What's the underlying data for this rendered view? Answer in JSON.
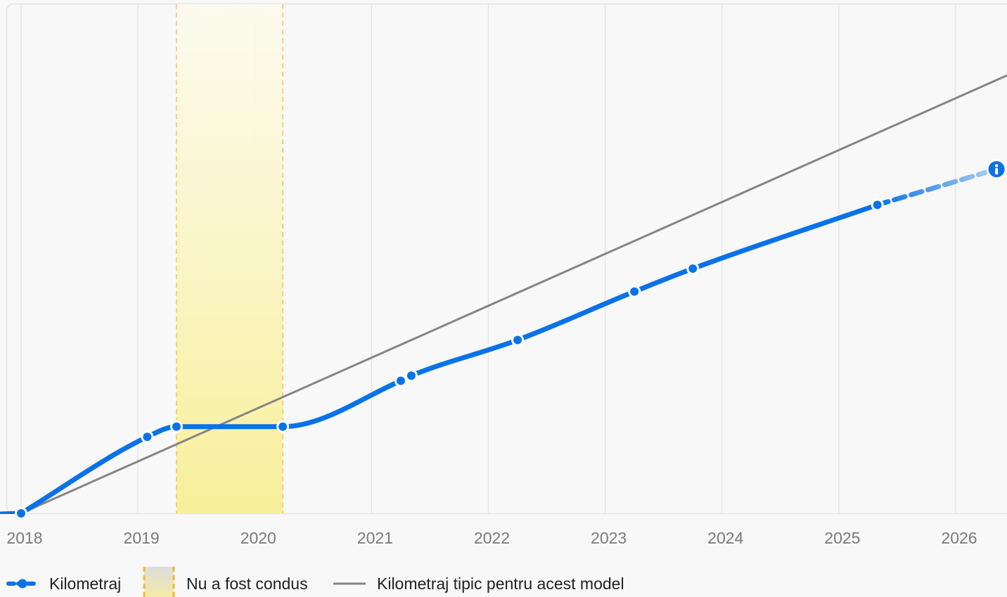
{
  "chart_data": {
    "type": "line",
    "title": "",
    "xlabel": "",
    "ylabel": "",
    "x_ticks": [
      "2018",
      "2019",
      "2020",
      "2021",
      "2022",
      "2023",
      "2024",
      "2025",
      "2026"
    ],
    "highlighted_tick": "2025",
    "xlim": [
      2017.9,
      2026.45
    ],
    "ylim": [
      0,
      100
    ],
    "grid": "vertical",
    "y_axis_labels": "none",
    "legend_position": "bottom-left",
    "series": [
      {
        "name": "Kilometraj",
        "style": "solid-then-dashed",
        "color": "#0a72e8",
        "points": [
          {
            "x": 2018.0,
            "y": 0
          },
          {
            "x": 2019.08,
            "y": 15
          },
          {
            "x": 2019.33,
            "y": 17
          },
          {
            "x": 2020.24,
            "y": 17
          },
          {
            "x": 2021.25,
            "y": 26
          },
          {
            "x": 2021.34,
            "y": 27
          },
          {
            "x": 2022.25,
            "y": 34
          },
          {
            "x": 2023.25,
            "y": 43.5
          },
          {
            "x": 2023.75,
            "y": 48
          },
          {
            "x": 2025.33,
            "y": 60.5
          }
        ],
        "projection": [
          {
            "x": 2025.33,
            "y": 60.5
          },
          {
            "x": 2026.35,
            "y": 67.5
          }
        ],
        "info_marker": {
          "x": 2026.35,
          "y": 67.5,
          "icon": "info-icon"
        }
      },
      {
        "name": "Kilometraj tipic pentru acest model",
        "style": "solid",
        "color": "#858585",
        "points": [
          {
            "x": 2018.0,
            "y": 0
          },
          {
            "x": 2026.45,
            "y": 86
          }
        ]
      }
    ],
    "bands": [
      {
        "name": "Nu a fost condus",
        "x_start": 2019.33,
        "x_end": 2020.24,
        "color": "#f8ef9a"
      }
    ],
    "legend": [
      {
        "label": "Kilometraj",
        "type": "dashed-line-dot",
        "color": "#0a72e8"
      },
      {
        "label": "Nu a fost condus",
        "type": "band",
        "color": "#f5e27a"
      },
      {
        "label": "Kilometraj tipic pentru acest model",
        "type": "line",
        "color": "#858585"
      }
    ],
    "colors": {
      "tick": "#7a7a7a",
      "tick_highlight": "#0a72e8",
      "grid": "#e6e6e6",
      "band_border": "#f4b631"
    }
  }
}
